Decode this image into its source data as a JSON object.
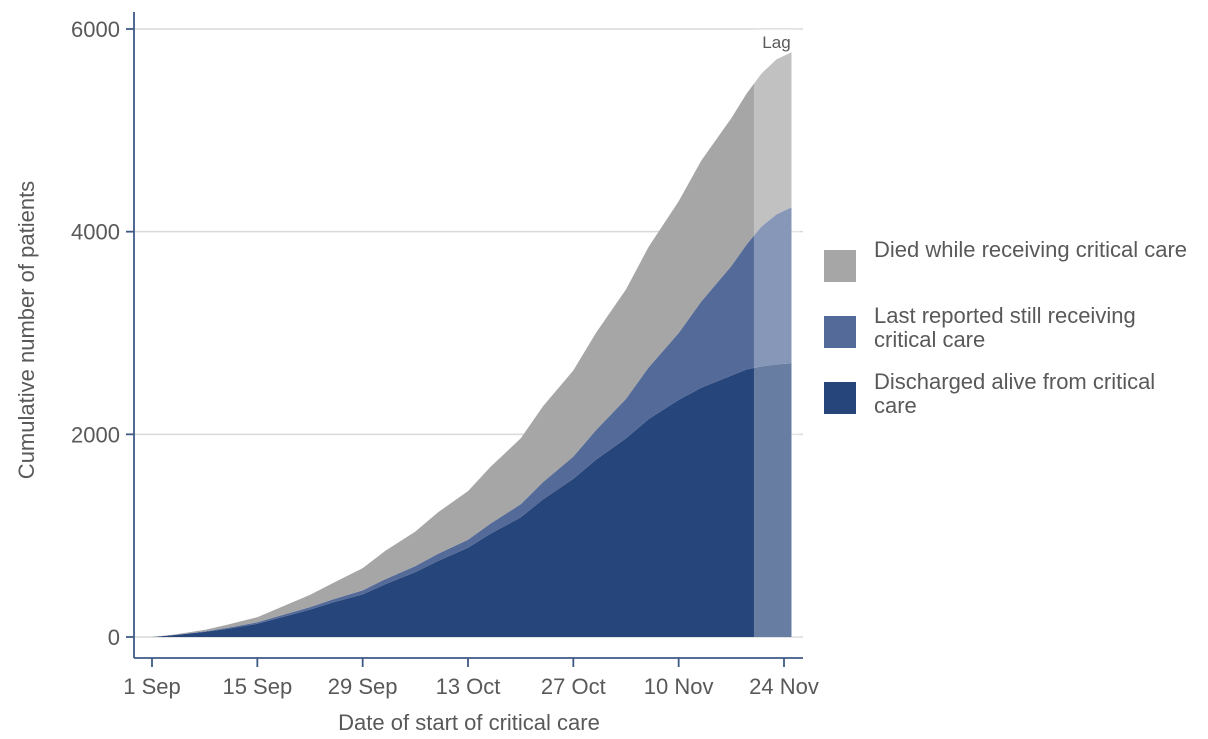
{
  "chart_data": {
    "type": "area",
    "stacked": true,
    "xlabel": "Date of start of critical care",
    "ylabel": "Cumulative number of patients",
    "ylim": [
      0,
      6000
    ],
    "yticks": [
      0,
      2000,
      4000,
      6000
    ],
    "ytick_labels": [
      "0",
      "2000",
      "4000",
      "6000"
    ],
    "xlim": [
      "2020-08-30",
      "2020-11-26"
    ],
    "xticks": [
      "2020-09-01",
      "2020-09-15",
      "2020-09-29",
      "2020-10-13",
      "2020-10-27",
      "2020-11-10",
      "2020-11-24"
    ],
    "xtick_labels": [
      "1 Sep",
      "15 Sep",
      "29 Sep",
      "13 Oct",
      "27 Oct",
      "10 Nov",
      "24 Nov"
    ],
    "grid": "horizontal",
    "legend_position": "right",
    "x": [
      "2020-09-01",
      "2020-09-04",
      "2020-09-08",
      "2020-09-11",
      "2020-09-15",
      "2020-09-18",
      "2020-09-22",
      "2020-09-25",
      "2020-09-29",
      "2020-10-02",
      "2020-10-06",
      "2020-10-09",
      "2020-10-13",
      "2020-10-16",
      "2020-10-20",
      "2020-10-23",
      "2020-10-27",
      "2020-10-30",
      "2020-11-03",
      "2020-11-06",
      "2020-11-10",
      "2020-11-13",
      "2020-11-17",
      "2020-11-19",
      "2020-11-21",
      "2020-11-23",
      "2020-11-25"
    ],
    "series": [
      {
        "name": "Discharged alive from critical care",
        "color": "#26457a",
        "values": [
          0,
          20,
          50,
          80,
          130,
          190,
          270,
          340,
          420,
          520,
          640,
          750,
          880,
          1020,
          1180,
          1360,
          1560,
          1750,
          1960,
          2150,
          2340,
          2460,
          2580,
          2640,
          2670,
          2690,
          2700
        ]
      },
      {
        "name": "Last reported still receiving critical care",
        "color": "#546a98",
        "values": [
          0,
          0,
          5,
          10,
          15,
          20,
          25,
          30,
          40,
          50,
          60,
          70,
          80,
          100,
          130,
          170,
          220,
          290,
          390,
          510,
          660,
          850,
          1080,
          1230,
          1380,
          1480,
          1540
        ]
      },
      {
        "name": "Died while receiving critical care",
        "color": "#a6a6a6",
        "values": [
          0,
          5,
          15,
          30,
          50,
          80,
          120,
          160,
          220,
          280,
          340,
          410,
          480,
          560,
          650,
          750,
          850,
          960,
          1080,
          1190,
          1300,
          1390,
          1460,
          1490,
          1510,
          1530,
          1530
        ]
      }
    ],
    "lag_region": {
      "start": "2020-11-20",
      "end": "2020-11-26",
      "label": "Lag"
    },
    "legend": [
      {
        "label": "Died while receiving critical care",
        "color": "#a6a6a6"
      },
      {
        "label": "Last reported still receiving critical care",
        "color": "#546a98"
      },
      {
        "label": "Discharged alive from critical care",
        "color": "#26457a"
      }
    ]
  }
}
